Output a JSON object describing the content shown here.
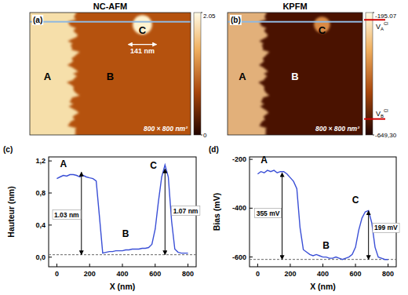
{
  "chart_data": [
    {
      "type": "image",
      "panel_label": "(a)",
      "title": "NC-AFM",
      "size_label": "800 × 800 nm²",
      "extent": [
        800,
        800
      ],
      "region_labels": [
        "A",
        "B",
        "C"
      ],
      "scale_bar": {
        "value": 141,
        "label": "141 nm"
      },
      "colorbar": {
        "range": [
          0,
          2.05
        ],
        "ticks": [
          2.05,
          0
        ]
      }
    },
    {
      "type": "image",
      "panel_label": "(b)",
      "title": "KPFM",
      "size_label": "800 × 800 nm²",
      "extent": [
        800,
        800
      ],
      "region_labels": [
        "A",
        "B",
        "C"
      ],
      "colorbar": {
        "range": [
          -649.3,
          -195.07
        ],
        "ticks": [
          -195.07,
          {
            "value": -649.3,
            "label": "-649,30"
          }
        ],
        "markers": [
          {
            "value": -222,
            "label": "V",
            "sub": "A",
            "sup": "Cl"
          },
          {
            "value": -590,
            "label": "V",
            "sub": "B",
            "sup": "Cl"
          }
        ]
      }
    },
    {
      "type": "line",
      "panel_label": "(c)",
      "x_label": "X (nm)",
      "y_label": "Hauteur (nm)",
      "color": "#3a4fd6",
      "x": [
        0,
        20,
        40,
        60,
        80,
        100,
        120,
        140,
        160,
        180,
        200,
        220,
        240,
        260,
        280,
        300,
        320,
        340,
        360,
        380,
        400,
        420,
        440,
        460,
        480,
        500,
        520,
        540,
        560,
        580,
        600,
        620,
        640,
        660,
        680,
        700,
        720,
        740,
        760,
        780,
        800
      ],
      "values": [
        0.98,
        1.0,
        1.02,
        1.01,
        1.03,
        1.03,
        1.02,
        1.0,
        1.02,
        1.0,
        0.99,
        0.98,
        0.95,
        0.5,
        0.05,
        0.06,
        0.07,
        0.07,
        0.08,
        0.08,
        0.08,
        0.09,
        0.09,
        0.1,
        0.1,
        0.1,
        0.11,
        0.11,
        0.12,
        0.16,
        0.35,
        0.7,
        1.0,
        1.15,
        1.0,
        0.45,
        0.1,
        0.06,
        0.05,
        0.05,
        0.05
      ],
      "xlim": [
        -50,
        850
      ],
      "ylim": [
        -0.12,
        1.25
      ],
      "xticks": [
        0,
        200,
        400,
        600,
        800
      ],
      "yticks": [
        {
          "value": 0,
          "label": "0,0"
        },
        {
          "value": 0.4,
          "label": "0,4"
        },
        {
          "value": 0.8,
          "label": "0,8"
        },
        {
          "value": 1.2,
          "label": "1,2"
        }
      ],
      "baseline": 0.03,
      "region_labels": [
        {
          "text": "A",
          "x": 40,
          "y": 1.12
        },
        {
          "text": "B",
          "x": 420,
          "y": 0.25
        },
        {
          "text": "C",
          "x": 590,
          "y": 1.1
        }
      ],
      "annotations": [
        {
          "text": "1.03 nm",
          "x": 150,
          "from": 0.03,
          "to": 1.06,
          "label_x": 135,
          "label_y": 0.5
        },
        {
          "text": "1.07 nm",
          "x": 660,
          "from": 0.03,
          "to": 1.1,
          "label_x": 710,
          "label_y": 0.55
        }
      ]
    },
    {
      "type": "line",
      "panel_label": "(d)",
      "x_label": "X (nm)",
      "y_label": "Bias (mV)",
      "color": "#3a4fd6",
      "x": [
        0,
        20,
        40,
        60,
        80,
        100,
        120,
        140,
        160,
        180,
        200,
        220,
        240,
        260,
        280,
        300,
        320,
        340,
        360,
        380,
        400,
        420,
        440,
        460,
        480,
        500,
        520,
        540,
        560,
        580,
        600,
        620,
        640,
        660,
        680,
        700,
        720,
        740,
        760,
        780,
        800
      ],
      "values": [
        -260,
        -250,
        -255,
        -245,
        -250,
        -245,
        -255,
        -250,
        -250,
        -260,
        -275,
        -290,
        -320,
        -480,
        -570,
        -580,
        -590,
        -595,
        -590,
        -595,
        -600,
        -600,
        -605,
        -605,
        -600,
        -605,
        -610,
        -605,
        -600,
        -590,
        -560,
        -490,
        -440,
        -415,
        -410,
        -460,
        -560,
        -600,
        -605,
        -610,
        -610
      ],
      "xlim": [
        -50,
        850
      ],
      "ylim": [
        -640,
        -190
      ],
      "xticks": [
        0,
        200,
        400,
        600,
        800
      ],
      "yticks": [
        -600,
        -400,
        -200
      ],
      "baseline": -610,
      "region_labels": [
        {
          "text": "A",
          "x": 40,
          "y": -215
        },
        {
          "text": "B",
          "x": 420,
          "y": -565
        },
        {
          "text": "C",
          "x": 600,
          "y": -380
        }
      ],
      "annotations": [
        {
          "text": "355 mV",
          "x": 150,
          "from": -610,
          "to": -255,
          "label_x": 135,
          "label_y": -430
        },
        {
          "text": "199 mV",
          "x": 680,
          "from": -610,
          "to": -411,
          "label_x": 715,
          "label_y": -490
        }
      ]
    }
  ]
}
